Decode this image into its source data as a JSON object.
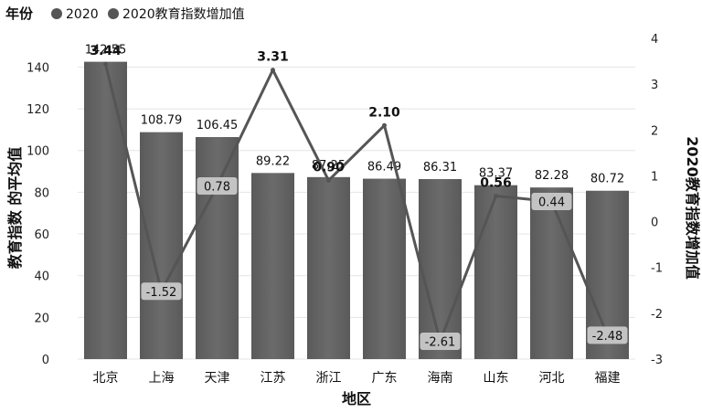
{
  "chart_data": {
    "type": "bar",
    "legend": {
      "title": "年份",
      "position": "top-left",
      "entries": [
        "2020",
        "2020教育指数增加值"
      ]
    },
    "xlabel": "地区",
    "ylabel": "教育指数 的平均值",
    "y2label": "2020教育指数增加值",
    "categories": [
      "北京",
      "上海",
      "天津",
      "江苏",
      "浙江",
      "广东",
      "海南",
      "山东",
      "河北",
      "福建"
    ],
    "ylim": [
      0,
      145
    ],
    "yticks": [
      0,
      20,
      40,
      60,
      80,
      100,
      120,
      140
    ],
    "y2lim": [
      -3,
      4
    ],
    "y2ticks": [
      -3,
      -2,
      -1,
      0,
      1,
      2,
      3,
      4
    ],
    "series": [
      {
        "name": "2020",
        "type": "bar",
        "axis": "left",
        "values": [
          142.55,
          108.79,
          106.45,
          89.22,
          87.25,
          86.49,
          86.31,
          83.37,
          82.28,
          80.72
        ],
        "labels": [
          "142.55",
          "108.79",
          "106.45",
          "89.22",
          "87.25",
          "86.49",
          "86.31",
          "83.37",
          "82.28",
          "80.72"
        ]
      },
      {
        "name": "2020教育指数增加值",
        "type": "line",
        "axis": "right",
        "values": [
          3.44,
          -1.52,
          0.78,
          3.31,
          0.9,
          2.1,
          -2.61,
          0.56,
          0.44,
          -2.48
        ],
        "labels": [
          "3.44",
          "-1.52",
          "0.78",
          "3.31",
          "0.90",
          "2.10",
          "-2.61",
          "0.56",
          "0.44",
          "-2.48"
        ]
      }
    ],
    "bar_color": "#6b6b6b",
    "line_color": "#555555",
    "label_box_color": "#c8c8c8",
    "grid": true
  }
}
